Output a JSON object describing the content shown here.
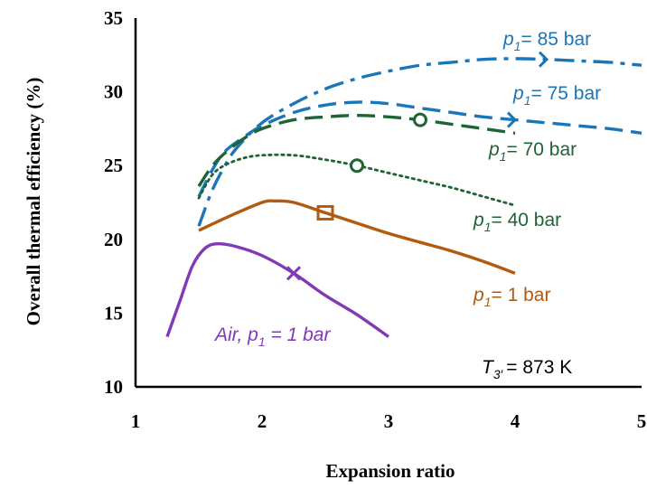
{
  "chart_data": {
    "type": "line",
    "title": "",
    "xlabel": "Expansion ratio",
    "ylabel": "Overall thermal efficiency (%)",
    "xlim": [
      1,
      5
    ],
    "ylim": [
      10,
      35
    ],
    "xticks": [
      1,
      2,
      3,
      4,
      5
    ],
    "yticks": [
      10,
      15,
      20,
      25,
      30,
      35
    ],
    "grid": false,
    "annotation": {
      "prefix": "T",
      "sub": "3′",
      "suffix": "= 873 K"
    },
    "series": [
      {
        "key": "p85",
        "label": {
          "prefix": "p",
          "sub": "1",
          "suffix": "= 85 bar"
        },
        "color": "#1A76B8",
        "dash": "dashdot",
        "marker": {
          "type": "arrow",
          "x": 4.25,
          "y": 32.2
        },
        "points": [
          [
            1.5,
            20.9
          ],
          [
            1.6,
            23.2
          ],
          [
            1.7,
            24.9
          ],
          [
            1.8,
            26.2
          ],
          [
            2.0,
            27.9
          ],
          [
            2.25,
            29.2
          ],
          [
            2.5,
            30.2
          ],
          [
            2.75,
            30.9
          ],
          [
            3.0,
            31.4
          ],
          [
            3.25,
            31.8
          ],
          [
            3.5,
            32.0
          ],
          [
            3.75,
            32.2
          ],
          [
            4.0,
            32.25
          ],
          [
            4.25,
            32.2
          ],
          [
            4.5,
            32.1
          ],
          [
            4.75,
            32.0
          ],
          [
            5.0,
            31.8
          ]
        ]
      },
      {
        "key": "p75",
        "label": {
          "prefix": "p",
          "sub": "1",
          "suffix": "= 75 bar"
        },
        "color": "#1A76B8",
        "dash": "dash",
        "marker": {
          "type": "arrow",
          "x": 4.0,
          "y": 28.1
        },
        "points": [
          [
            1.5,
            22.9
          ],
          [
            1.6,
            24.6
          ],
          [
            1.7,
            25.9
          ],
          [
            1.85,
            26.9
          ],
          [
            2.0,
            27.7
          ],
          [
            2.25,
            28.6
          ],
          [
            2.5,
            29.1
          ],
          [
            2.75,
            29.3
          ],
          [
            3.0,
            29.2
          ],
          [
            3.25,
            28.9
          ],
          [
            3.5,
            28.6
          ],
          [
            3.75,
            28.3
          ],
          [
            4.0,
            28.1
          ],
          [
            4.25,
            27.9
          ],
          [
            4.5,
            27.7
          ],
          [
            4.75,
            27.5
          ],
          [
            5.0,
            27.2
          ]
        ]
      },
      {
        "key": "p70",
        "label": {
          "prefix": "p",
          "sub": "1",
          "suffix": "= 70 bar"
        },
        "color": "#1E6434",
        "dash": "dash",
        "marker": {
          "type": "circle",
          "x": 3.25,
          "y": 28.1
        },
        "points": [
          [
            1.5,
            23.6
          ],
          [
            1.6,
            24.9
          ],
          [
            1.7,
            25.8
          ],
          [
            1.85,
            26.8
          ],
          [
            2.0,
            27.5
          ],
          [
            2.25,
            28.1
          ],
          [
            2.5,
            28.3
          ],
          [
            2.75,
            28.4
          ],
          [
            3.0,
            28.3
          ],
          [
            3.25,
            28.1
          ],
          [
            3.5,
            27.8
          ],
          [
            3.75,
            27.5
          ],
          [
            4.0,
            27.2
          ]
        ]
      },
      {
        "key": "p40",
        "label": {
          "prefix": "p",
          "sub": "1",
          "suffix": "= 40 bar"
        },
        "color": "#1E6434",
        "dash": "dot",
        "marker": {
          "type": "circle",
          "x": 2.75,
          "y": 25.0
        },
        "points": [
          [
            1.5,
            22.8
          ],
          [
            1.6,
            24.3
          ],
          [
            1.7,
            25.0
          ],
          [
            1.85,
            25.5
          ],
          [
            2.0,
            25.7
          ],
          [
            2.25,
            25.7
          ],
          [
            2.5,
            25.4
          ],
          [
            2.75,
            25.0
          ],
          [
            3.0,
            24.5
          ],
          [
            3.25,
            24.0
          ],
          [
            3.5,
            23.5
          ],
          [
            3.75,
            22.9
          ],
          [
            4.0,
            22.3
          ]
        ]
      },
      {
        "key": "p1",
        "label": {
          "prefix": "p",
          "sub": "1",
          "suffix": "= 1 bar"
        },
        "color": "#B25A0F",
        "dash": "solid",
        "marker": {
          "type": "square",
          "x": 2.5,
          "y": 21.8
        },
        "points": [
          [
            1.5,
            20.6
          ],
          [
            1.75,
            21.6
          ],
          [
            2.0,
            22.5
          ],
          [
            2.1,
            22.6
          ],
          [
            2.25,
            22.5
          ],
          [
            2.5,
            21.8
          ],
          [
            2.75,
            21.1
          ],
          [
            3.0,
            20.4
          ],
          [
            3.25,
            19.8
          ],
          [
            3.5,
            19.2
          ],
          [
            3.75,
            18.5
          ],
          [
            4.0,
            17.7
          ]
        ]
      },
      {
        "key": "air",
        "label": {
          "prefix": "Air, p",
          "sub": "1",
          "suffix": " = 1 bar"
        },
        "color": "#8139B6",
        "dash": "solid",
        "marker": {
          "type": "cross",
          "x": 2.25,
          "y": 17.7
        },
        "points": [
          [
            1.25,
            13.4
          ],
          [
            1.35,
            15.8
          ],
          [
            1.45,
            18.2
          ],
          [
            1.55,
            19.4
          ],
          [
            1.65,
            19.7
          ],
          [
            1.8,
            19.5
          ],
          [
            2.0,
            18.9
          ],
          [
            2.25,
            17.7
          ],
          [
            2.5,
            16.2
          ],
          [
            2.75,
            14.9
          ],
          [
            3.0,
            13.4
          ]
        ]
      }
    ]
  }
}
